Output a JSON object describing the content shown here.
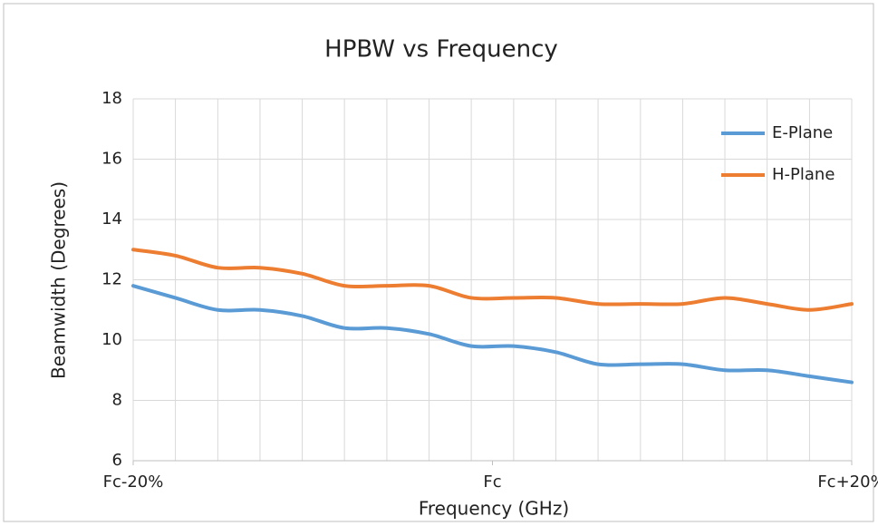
{
  "chart_data": {
    "type": "line",
    "title": "HPBW vs Frequency",
    "x_label": "Frequency (GHz)",
    "y_label": "Beamwidth (Degrees)",
    "x": [
      -20,
      -17.65,
      -15.29,
      -12.94,
      -10.59,
      -8.24,
      -5.88,
      -3.53,
      -1.18,
      1.18,
      3.53,
      5.88,
      8.24,
      10.59,
      12.94,
      15.29,
      17.65,
      20
    ],
    "series": [
      {
        "name": "E-Plane",
        "color": "#5b9bd5",
        "values": [
          11.8,
          11.4,
          11.0,
          11.0,
          10.8,
          10.4,
          10.4,
          10.2,
          9.8,
          9.8,
          9.6,
          9.2,
          9.2,
          9.2,
          9.0,
          9.0,
          8.8,
          8.6
        ]
      },
      {
        "name": "H-Plane",
        "color": "#ed7d31",
        "values": [
          13.0,
          12.8,
          12.4,
          12.4,
          12.2,
          11.8,
          11.8,
          11.8,
          11.4,
          11.4,
          11.4,
          11.2,
          11.2,
          11.2,
          11.4,
          11.2,
          11.0,
          11.2
        ]
      }
    ],
    "xlim": [
      -20,
      20
    ],
    "xticks": [
      {
        "value": -20,
        "label": "Fc-20%"
      },
      {
        "value": 0,
        "label": "Fc"
      },
      {
        "value": 20,
        "label": "Fc+20%"
      }
    ],
    "ylim": [
      6,
      18
    ],
    "yticks": [
      6,
      8,
      10,
      12,
      14,
      16,
      18
    ],
    "grid": true,
    "legend": "upper right"
  }
}
